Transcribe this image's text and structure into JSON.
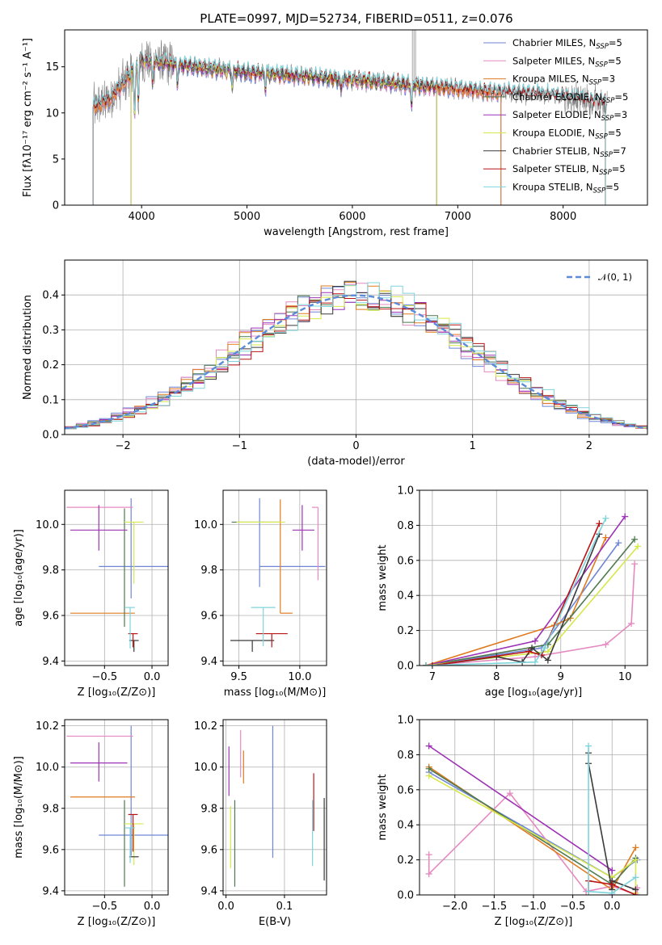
{
  "figure_title": "PLATE=0997, MJD=52734, FIBERID=0511, z=0.076",
  "colors": {
    "Chabrier MILES": "#6f86d6",
    "Salpeter MILES": "#e58ac0",
    "Kroupa MILES": "#e07a1f",
    "Chabrier ELODIE": "#4f7a4f",
    "Salpeter ELODIE": "#9d33b5",
    "Kroupa ELODIE": "#d6e84a",
    "Chabrier STELIB": "#3a3a3a",
    "Salpeter STELIB": "#b81414",
    "Kroupa STELIB": "#7fd4dc",
    "data": "#7f7f7f"
  },
  "chart_data": [
    {
      "type": "line",
      "id": "spectrum",
      "title": "PLATE=0997, MJD=52734, FIBERID=0511, z=0.076",
      "xlabel": "wavelength [Angstrom, rest frame]",
      "ylabel": "Flux [fλ10⁻¹⁷ erg cm⁻² s⁻¹ A⁻¹]",
      "xlim": [
        3270,
        8800
      ],
      "ylim": [
        0,
        19
      ],
      "xticks": [
        4000,
        5000,
        6000,
        7000,
        8000
      ],
      "yticks": [
        0,
        5,
        10,
        15
      ],
      "legend_position": "upper-right",
      "legend": [
        {
          "base": "Chabrier MILES, N",
          "sub": "SSP",
          "tail": "=5"
        },
        {
          "base": "Salpeter MILES, N",
          "sub": "SSP",
          "tail": "=5"
        },
        {
          "base": "Kroupa MILES, N",
          "sub": "SSP",
          "tail": "=3"
        },
        {
          "base": "Chabrier ELODIE, N",
          "sub": "SSP",
          "tail": "=5"
        },
        {
          "base": "Salpeter ELODIE, N",
          "sub": "SSP",
          "tail": "=3"
        },
        {
          "base": "Kroupa ELODIE, N",
          "sub": "SSP",
          "tail": "=5"
        },
        {
          "base": "Chabrier STELIB, N",
          "sub": "SSP",
          "tail": "=7"
        },
        {
          "base": "Salpeter STELIB, N",
          "sub": "SSP",
          "tail": "=5"
        },
        {
          "base": "Kroupa STELIB, N",
          "sub": "SSP",
          "tail": "=5"
        }
      ],
      "continuum": {
        "x": [
          3520,
          3700,
          3850,
          4000,
          4200,
          4500,
          5000,
          5500,
          6000,
          6500,
          7000,
          7400,
          7800,
          8200,
          8400
        ],
        "y": [
          10.5,
          11.5,
          13.5,
          15.7,
          15.4,
          15.0,
          14.4,
          14.0,
          13.6,
          13.1,
          12.6,
          12.2,
          12.0,
          11.4,
          11.0
        ]
      },
      "model_ranges": [
        {
          "series": "Chabrier MILES",
          "x": [
            3540,
            7410
          ]
        },
        {
          "series": "Salpeter MILES",
          "x": [
            3540,
            7410
          ]
        },
        {
          "series": "Kroupa MILES",
          "x": [
            3540,
            7410
          ]
        },
        {
          "series": "Chabrier ELODIE",
          "x": [
            3900,
            6800
          ]
        },
        {
          "series": "Salpeter ELODIE",
          "x": [
            3900,
            6800
          ]
        },
        {
          "series": "Kroupa ELODIE",
          "x": [
            3900,
            6800
          ]
        },
        {
          "series": "Chabrier STELIB",
          "x": [
            3540,
            8400
          ]
        },
        {
          "series": "Salpeter STELIB",
          "x": [
            3540,
            8400
          ]
        },
        {
          "series": "Kroupa STELIB",
          "x": [
            3540,
            8400
          ]
        }
      ]
    },
    {
      "type": "bar",
      "id": "residuals",
      "xlabel": "(data-model)/error",
      "ylabel": "Normed distribution",
      "xlim": [
        -2.5,
        2.5
      ],
      "ylim": [
        0,
        0.5
      ],
      "xticks": [
        -2,
        -1,
        0,
        1,
        2
      ],
      "yticks": [
        0.0,
        0.1,
        0.2,
        0.3,
        0.4
      ],
      "grid": true,
      "legend_position": "upper-right",
      "gaussian_label": "𝒩(0, 1)",
      "gaussian_color": "#5b8bd9",
      "bin_width": 0.1
    },
    {
      "type": "scatter",
      "id": "age_vs_Z",
      "xlabel": "Z [log₁₀(Z/Z⊙)]",
      "ylabel": "age  [log₁₀(age/yr)]",
      "xlim": [
        -0.92,
        0.17
      ],
      "ylim": [
        9.38,
        10.15
      ],
      "xticks": [
        -0.5,
        0.0
      ],
      "yticks": [
        9.4,
        9.6,
        9.8,
        10.0
      ],
      "grid": true,
      "points": [
        {
          "series": "Chabrier MILES",
          "x": -0.22,
          "y": 9.815,
          "xerr": [
            0.34,
            0.4
          ],
          "yerr": [
            0.14,
            0.3
          ]
        },
        {
          "series": "Salpeter MILES",
          "x": -0.55,
          "y": 10.075,
          "xerr": [
            0.35,
            0.35
          ],
          "yerr": [
            0.0,
            0.0
          ]
        },
        {
          "series": "Kroupa MILES",
          "x": -0.52,
          "y": 9.61,
          "xerr": [
            0.34,
            0.34
          ],
          "yerr": [
            0.0,
            0.0
          ]
        },
        {
          "series": "Chabrier ELODIE",
          "x": -0.29,
          "y": 9.75,
          "xerr": [
            0.0,
            0.0
          ],
          "yerr": [
            0.2,
            0.32
          ]
        },
        {
          "series": "Salpeter ELODIE",
          "x": -0.56,
          "y": 9.975,
          "xerr": [
            0.3,
            0.3
          ],
          "yerr": [
            0.09,
            0.11
          ]
        },
        {
          "series": "Kroupa ELODIE",
          "x": -0.19,
          "y": 10.01,
          "xerr": [
            0.1,
            0.1
          ],
          "yerr": [
            0.27,
            0.0
          ]
        },
        {
          "series": "Chabrier STELIB",
          "x": -0.19,
          "y": 9.49,
          "xerr": [
            0.05,
            0.05
          ],
          "yerr": [
            0.05,
            0.0
          ]
        },
        {
          "series": "Salpeter STELIB",
          "x": -0.2,
          "y": 9.52,
          "xerr": [
            0.05,
            0.05
          ],
          "yerr": [
            0.06,
            0.0
          ]
        },
        {
          "series": "Kroupa STELIB",
          "x": -0.23,
          "y": 9.635,
          "xerr": [
            0.05,
            0.05
          ],
          "yerr": [
            0.18,
            0.0
          ]
        }
      ]
    },
    {
      "type": "scatter",
      "id": "age_vs_mass",
      "xlabel": "mass [log₁₀(M/M⊙)]",
      "ylabel": "",
      "xlim": [
        9.37,
        10.22
      ],
      "ylim": [
        9.38,
        10.15
      ],
      "xticks": [
        9.5,
        10.0
      ],
      "yticks": [
        9.4,
        9.6,
        9.8,
        10.0
      ],
      "grid": true,
      "points": [
        {
          "series": "Chabrier MILES",
          "x": 9.67,
          "y": 9.815,
          "xerr": [
            0.0,
            0.54
          ],
          "yerr": [
            0.09,
            0.3
          ]
        },
        {
          "series": "Salpeter MILES",
          "x": 10.15,
          "y": 10.075,
          "xerr": [
            0.05,
            0.0
          ],
          "yerr": [
            0.32,
            0.0
          ]
        },
        {
          "series": "Kroupa MILES",
          "x": 9.84,
          "y": 9.61,
          "xerr": [
            0.0,
            0.1
          ],
          "yerr": [
            0.0,
            0.5
          ]
        },
        {
          "series": "Chabrier ELODIE",
          "x": 9.64,
          "y": 10.01,
          "xerr": [
            0.2,
            0.2
          ],
          "yerr": [
            0.0,
            0.0
          ]
        },
        {
          "series": "Salpeter ELODIE",
          "x": 10.02,
          "y": 9.975,
          "xerr": [
            0.08,
            0.1
          ],
          "yerr": [
            0.09,
            0.11
          ]
        },
        {
          "series": "Kroupa ELODIE",
          "x": 9.68,
          "y": 10.01,
          "xerr": [
            0.2,
            0.2
          ],
          "yerr": [
            0.0,
            0.0
          ]
        },
        {
          "series": "Chabrier STELIB",
          "x": 9.61,
          "y": 9.49,
          "xerr": [
            0.18,
            0.18
          ],
          "yerr": [
            0.05,
            0.0
          ]
        },
        {
          "series": "Salpeter STELIB",
          "x": 9.77,
          "y": 9.52,
          "xerr": [
            0.13,
            0.13
          ],
          "yerr": [
            0.06,
            0.0
          ]
        },
        {
          "series": "Kroupa STELIB",
          "x": 9.7,
          "y": 9.635,
          "xerr": [
            0.1,
            0.1
          ],
          "yerr": [
            0.17,
            0.0
          ]
        }
      ]
    },
    {
      "type": "line",
      "id": "mass_weight_vs_age",
      "xlabel": "age  [log₁₀(age/yr)]",
      "ylabel": "mass weight",
      "xlim": [
        6.8,
        10.35
      ],
      "ylim": [
        0,
        1.0
      ],
      "xticks": [
        7,
        8,
        9,
        10
      ],
      "yticks": [
        0.0,
        0.2,
        0.4,
        0.6,
        0.8,
        1.0
      ],
      "grid": true,
      "series": [
        {
          "name": "Chabrier MILES",
          "x": [
            6.9,
            8.7,
            9.9
          ],
          "y": [
            0.0,
            0.1,
            0.7
          ]
        },
        {
          "name": "Salpeter MILES",
          "x": [
            6.9,
            8.6,
            9.7,
            10.1,
            10.15
          ],
          "y": [
            0.0,
            0.05,
            0.12,
            0.24,
            0.58
          ]
        },
        {
          "name": "Kroupa MILES",
          "x": [
            6.9,
            8.9,
            9.15,
            9.7
          ],
          "y": [
            0.0,
            0.23,
            0.27,
            0.73
          ]
        },
        {
          "name": "Chabrier ELODIE",
          "x": [
            6.9,
            8.8,
            10.15
          ],
          "y": [
            0.0,
            0.12,
            0.72
          ]
        },
        {
          "name": "Salpeter ELODIE",
          "x": [
            6.9,
            8.6,
            10.0
          ],
          "y": [
            0.0,
            0.14,
            0.85
          ]
        },
        {
          "name": "Kroupa ELODIE",
          "x": [
            6.9,
            8.8,
            10.2
          ],
          "y": [
            0.0,
            0.08,
            0.68
          ]
        },
        {
          "name": "Chabrier STELIB",
          "x": [
            7.0,
            8.0,
            8.4,
            8.55,
            8.8,
            9.6
          ],
          "y": [
            0.0,
            0.05,
            0.02,
            0.1,
            0.03,
            0.75
          ]
        },
        {
          "name": "Salpeter STELIB",
          "x": [
            7.0,
            8.5,
            8.7,
            9.6
          ],
          "y": [
            0.0,
            0.08,
            0.06,
            0.81
          ]
        },
        {
          "name": "Kroupa STELIB",
          "x": [
            6.9,
            8.6,
            8.75,
            9.7
          ],
          "y": [
            0.0,
            0.02,
            0.1,
            0.84
          ]
        }
      ]
    },
    {
      "type": "scatter",
      "id": "mass_vs_Z",
      "xlabel": "Z [log₁₀(Z/Z⊙)]",
      "ylabel": "mass [log₁₀(M/M⊙)]",
      "xlim": [
        -0.92,
        0.17
      ],
      "ylim": [
        9.38,
        10.23
      ],
      "xticks": [
        -0.5,
        0.0
      ],
      "yticks": [
        9.4,
        9.6,
        9.8,
        10.0,
        10.2
      ],
      "grid": true,
      "points": [
        {
          "series": "Chabrier MILES",
          "x": -0.22,
          "y": 9.67,
          "xerr": [
            0.34,
            0.4
          ],
          "yerr": [
            0.1,
            0.53
          ]
        },
        {
          "series": "Salpeter MILES",
          "x": -0.55,
          "y": 10.15,
          "xerr": [
            0.35,
            0.35
          ],
          "yerr": [
            0.0,
            0.0
          ]
        },
        {
          "series": "Kroupa MILES",
          "x": -0.52,
          "y": 9.855,
          "xerr": [
            0.34,
            0.34
          ],
          "yerr": [
            0.0,
            0.0
          ]
        },
        {
          "series": "Chabrier ELODIE",
          "x": -0.29,
          "y": 9.64,
          "xerr": [
            0.0,
            0.0
          ],
          "yerr": [
            0.22,
            0.2
          ]
        },
        {
          "series": "Salpeter ELODIE",
          "x": -0.56,
          "y": 10.02,
          "xerr": [
            0.3,
            0.3
          ],
          "yerr": [
            0.09,
            0.1
          ]
        },
        {
          "series": "Kroupa ELODIE",
          "x": -0.19,
          "y": 9.725,
          "xerr": [
            0.1,
            0.1
          ],
          "yerr": [
            0.2,
            0.0
          ]
        },
        {
          "series": "Chabrier STELIB",
          "x": -0.19,
          "y": 9.565,
          "xerr": [
            0.05,
            0.05
          ],
          "yerr": [
            0.0,
            0.0
          ]
        },
        {
          "series": "Salpeter STELIB",
          "x": -0.2,
          "y": 9.77,
          "xerr": [
            0.05,
            0.05
          ],
          "yerr": [
            0.18,
            0.0
          ]
        },
        {
          "series": "Kroupa STELIB",
          "x": -0.23,
          "y": 9.705,
          "xerr": [
            0.05,
            0.05
          ],
          "yerr": [
            0.17,
            0.0
          ]
        }
      ]
    },
    {
      "type": "scatter",
      "id": "mass_vs_EBV",
      "xlabel": "E(B-V)",
      "ylabel": "",
      "xlim": [
        -0.005,
        0.172
      ],
      "ylim": [
        9.38,
        10.23
      ],
      "xticks": [
        0.0,
        0.1
      ],
      "yticks": [
        9.4,
        9.6,
        9.8,
        10.0,
        10.2
      ],
      "grid": true,
      "points": [
        {
          "series": "Chabrier MILES",
          "x": 0.08,
          "y": 9.88,
          "xerr": [
            0,
            0
          ],
          "yerr": [
            0.32,
            0.32
          ]
        },
        {
          "series": "Salpeter MILES",
          "x": 0.025,
          "y": 10.1,
          "xerr": [
            0,
            0
          ],
          "yerr": [
            0.15,
            0.08
          ]
        },
        {
          "series": "Kroupa MILES",
          "x": 0.03,
          "y": 10.0,
          "xerr": [
            0,
            0
          ],
          "yerr": [
            0.08,
            0.08
          ]
        },
        {
          "series": "Chabrier ELODIE",
          "x": 0.015,
          "y": 9.63,
          "xerr": [
            0,
            0
          ],
          "yerr": [
            0.21,
            0.21
          ]
        },
        {
          "series": "Salpeter ELODIE",
          "x": 0.005,
          "y": 9.98,
          "xerr": [
            0,
            0
          ],
          "yerr": [
            0.12,
            0.12
          ]
        },
        {
          "series": "Kroupa ELODIE",
          "x": 0.008,
          "y": 9.66,
          "xerr": [
            0,
            0
          ],
          "yerr": [
            0.15,
            0.15
          ]
        },
        {
          "series": "Chabrier STELIB",
          "x": 0.168,
          "y": 9.65,
          "xerr": [
            0,
            0
          ],
          "yerr": [
            0.2,
            0.2
          ]
        },
        {
          "series": "Salpeter STELIB",
          "x": 0.15,
          "y": 9.83,
          "xerr": [
            0,
            0
          ],
          "yerr": [
            0.14,
            0.14
          ]
        },
        {
          "series": "Kroupa STELIB",
          "x": 0.148,
          "y": 9.68,
          "xerr": [
            0,
            0
          ],
          "yerr": [
            0.16,
            0.16
          ]
        }
      ]
    },
    {
      "type": "line",
      "id": "mass_weight_vs_Z",
      "xlabel": "Z [log₁₀(Z/Z⊙)]",
      "ylabel": "mass weight",
      "xlim": [
        -2.45,
        0.45
      ],
      "ylim": [
        0,
        1.0
      ],
      "xticks": [
        -2.0,
        -1.5,
        -1.0,
        -0.5,
        0.0
      ],
      "yticks": [
        0.0,
        0.2,
        0.4,
        0.6,
        0.8,
        1.0
      ],
      "grid": true,
      "series": [
        {
          "name": "Chabrier MILES",
          "x": [
            -2.33,
            0.0,
            0.32
          ],
          "y": [
            0.7,
            0.1,
            0.2
          ]
        },
        {
          "name": "Salpeter MILES",
          "x": [
            -2.33,
            -2.33,
            -1.3,
            -0.33,
            0.0,
            0.32,
            0.32
          ],
          "y": [
            0.23,
            0.12,
            0.58,
            0.02,
            0.05,
            0.0,
            0.04
          ]
        },
        {
          "name": "Kroupa MILES",
          "x": [
            -2.33,
            0.0,
            0.3
          ],
          "y": [
            0.73,
            0.03,
            0.27
          ]
        },
        {
          "name": "Chabrier ELODIE",
          "x": [
            -2.33,
            0.0,
            0.3
          ],
          "y": [
            0.72,
            0.06,
            0.21
          ]
        },
        {
          "name": "Salpeter ELODIE",
          "x": [
            -2.33,
            0.0,
            0.0
          ],
          "y": [
            0.85,
            0.14,
            0.0
          ]
        },
        {
          "name": "Kroupa ELODIE",
          "x": [
            -2.33,
            0.0,
            0.3,
            0.3
          ],
          "y": [
            0.68,
            0.1,
            0.2,
            0.01
          ]
        },
        {
          "name": "Chabrier STELIB",
          "x": [
            -0.3,
            -0.3,
            0.0,
            0.0,
            0.3
          ],
          "y": [
            0.81,
            0.75,
            0.03,
            0.08,
            0.03
          ]
        },
        {
          "name": "Salpeter STELIB",
          "x": [
            -0.3,
            -0.3,
            0.0,
            0.3
          ],
          "y": [
            0.02,
            0.08,
            0.06,
            0.0
          ]
        },
        {
          "name": "Kroupa STELIB",
          "x": [
            -0.3,
            -0.3,
            0.0,
            0.3
          ],
          "y": [
            0.85,
            0.02,
            0.01,
            0.1
          ]
        }
      ]
    }
  ]
}
